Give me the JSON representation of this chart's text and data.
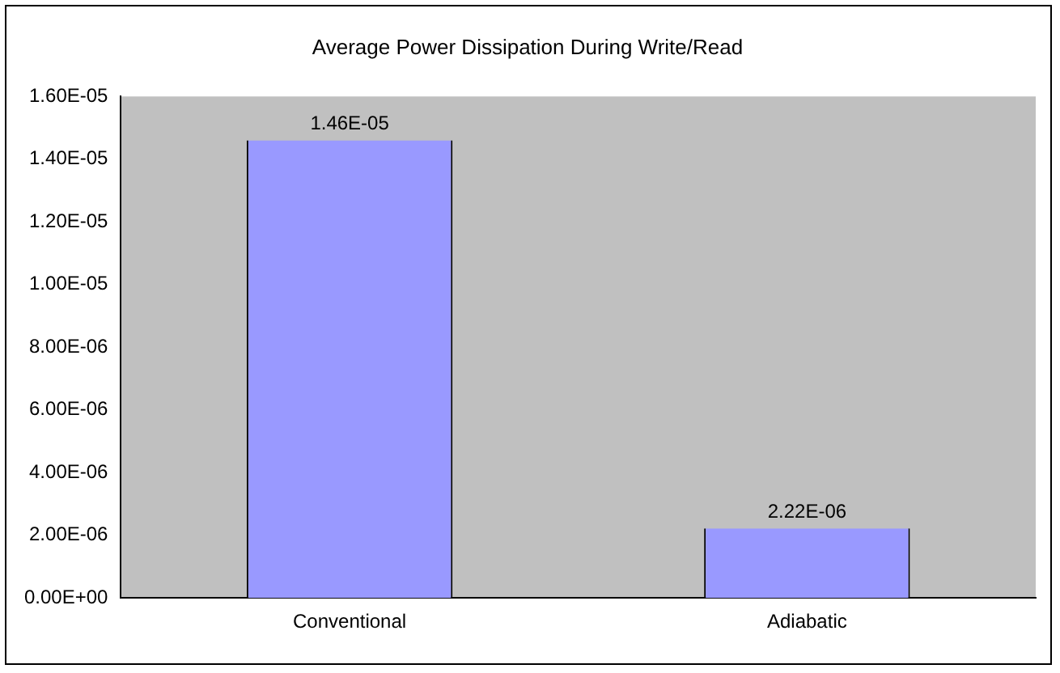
{
  "chart_data": {
    "type": "bar",
    "title": "Average Power Dissipation During Write/Read",
    "categories": [
      "Conventional",
      "Adiabatic"
    ],
    "values": [
      1.46e-05,
      2.22e-06
    ],
    "value_labels": [
      "1.46E-05",
      "2.22E-06"
    ],
    "color": "#9999ff",
    "ylim": [
      0,
      1.6e-05
    ],
    "yticks": [
      {
        "value": 0,
        "label": "0.00E+00"
      },
      {
        "value": 2e-06,
        "label": "2.00E-06"
      },
      {
        "value": 4e-06,
        "label": "4.00E-06"
      },
      {
        "value": 6e-06,
        "label": "6.00E-06"
      },
      {
        "value": 8e-06,
        "label": "8.00E-06"
      },
      {
        "value": 1e-05,
        "label": "1.00E-05"
      },
      {
        "value": 1.2e-05,
        "label": "1.20E-05"
      },
      {
        "value": 1.4e-05,
        "label": "1.40E-05"
      },
      {
        "value": 1.6e-05,
        "label": "1.60E-05"
      }
    ],
    "grid": false,
    "legend": false
  }
}
